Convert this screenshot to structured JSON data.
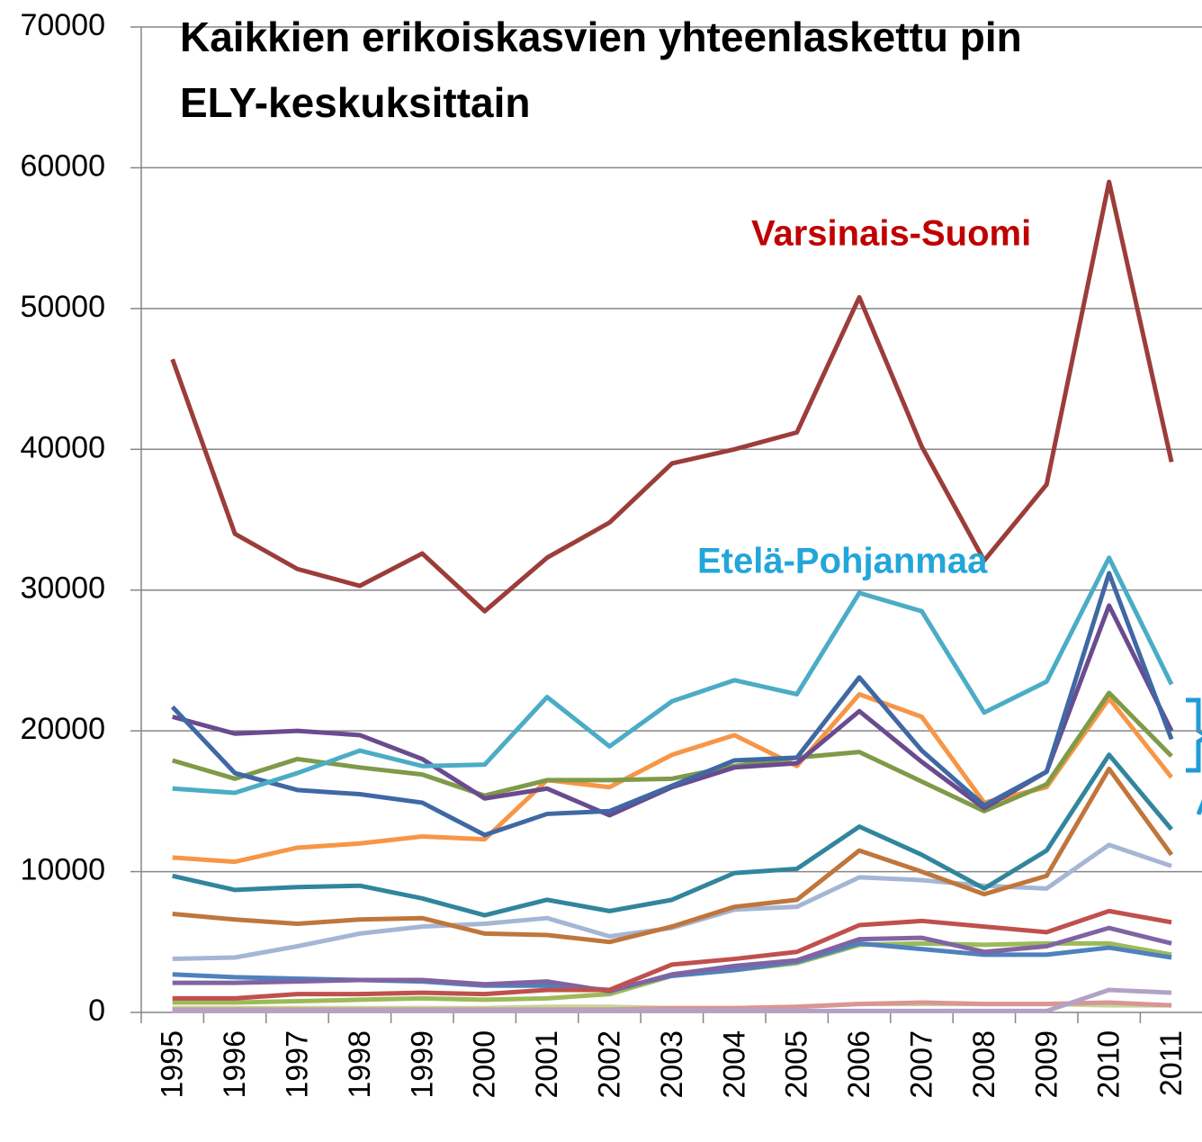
{
  "chart_data": {
    "type": "line",
    "title": [
      "Kaikkien erikoiskasvien yhteenlaskettu pin",
      "ELY-keskuksittain"
    ],
    "annotations": [
      {
        "text": "Varsinais-Suomi",
        "color": "#c00000"
      },
      {
        "text": "Etelä-Pohjanmaa",
        "color": "#23a6d9"
      }
    ],
    "categories": [
      "1995",
      "1996",
      "1997",
      "1998",
      "1999",
      "2000",
      "2001",
      "2002",
      "2003",
      "2004",
      "2005",
      "2006",
      "2007",
      "2008",
      "2009",
      "2010",
      "2011"
    ],
    "ylim": [
      0,
      70000
    ],
    "yticks": [
      0,
      10000,
      20000,
      30000,
      40000,
      50000,
      60000,
      70000
    ],
    "grid": true,
    "series": [
      {
        "color": "#9c3d3a",
        "values": [
          46400,
          34000,
          31500,
          30300,
          32600,
          28500,
          32300,
          34800,
          39000,
          40000,
          41200,
          50800,
          40200,
          32100,
          37500,
          59000,
          39100
        ]
      },
      {
        "color": "#4bacc6",
        "values": [
          15900,
          15600,
          17000,
          18600,
          17500,
          17600,
          22400,
          18900,
          22100,
          23600,
          22600,
          29800,
          28500,
          21300,
          23500,
          32300,
          23300
        ]
      },
      {
        "color": "#3f68a4",
        "values": [
          21700,
          17000,
          15800,
          15500,
          14900,
          12600,
          14100,
          14300,
          16100,
          17900,
          18100,
          23800,
          18600,
          14700,
          17100,
          31200,
          19400
        ]
      },
      {
        "color": "#6a4b8f",
        "values": [
          21000,
          19800,
          20000,
          19700,
          18000,
          15200,
          15900,
          14000,
          16000,
          17400,
          17700,
          21400,
          17800,
          14500,
          17100,
          28900,
          20000
        ]
      },
      {
        "color": "#7f9a48",
        "values": [
          17900,
          16600,
          18000,
          17400,
          16900,
          15400,
          16500,
          16500,
          16600,
          17500,
          18100,
          18500,
          16400,
          14300,
          16200,
          22700,
          18200
        ]
      },
      {
        "color": "#f79646",
        "values": [
          11000,
          10700,
          11700,
          12000,
          12500,
          12300,
          16500,
          16000,
          18300,
          19700,
          17500,
          22600,
          21000,
          14900,
          16000,
          22300,
          16700
        ]
      },
      {
        "color": "#31859c",
        "values": [
          9700,
          8700,
          8900,
          9000,
          8100,
          6900,
          8000,
          7200,
          8000,
          9900,
          10200,
          13200,
          11200,
          8800,
          11500,
          18300,
          13000
        ]
      },
      {
        "color": "#c0763b",
        "values": [
          7000,
          6600,
          6300,
          6600,
          6700,
          5600,
          5500,
          5000,
          6100,
          7500,
          8000,
          11500,
          10000,
          8400,
          9700,
          17300,
          11200
        ]
      },
      {
        "color": "#a5b6d5",
        "values": [
          3800,
          3900,
          4700,
          5600,
          6100,
          6300,
          6700,
          5400,
          6000,
          7300,
          7500,
          9600,
          9400,
          9000,
          8800,
          11900,
          10400
        ]
      },
      {
        "color": "#c0504d",
        "values": [
          1000,
          1000,
          1300,
          1300,
          1400,
          1300,
          1600,
          1600,
          3400,
          3800,
          4300,
          6200,
          6500,
          6100,
          5700,
          7200,
          6400
        ]
      },
      {
        "color": "#8064a2",
        "values": [
          2100,
          2100,
          2200,
          2300,
          2300,
          2000,
          2200,
          1500,
          2700,
          3300,
          3700,
          5200,
          5300,
          4300,
          4700,
          6000,
          4900
        ]
      },
      {
        "color": "#4f81bd",
        "values": [
          2700,
          2500,
          2400,
          2300,
          2200,
          1900,
          1900,
          1600,
          2600,
          3000,
          3600,
          4900,
          4500,
          4100,
          4100,
          4600,
          3900
        ]
      },
      {
        "color": "#9bbb59",
        "values": [
          700,
          700,
          800,
          900,
          1000,
          900,
          1000,
          1300,
          2600,
          3000,
          3500,
          4800,
          4900,
          4800,
          4900,
          4900,
          4100
        ]
      },
      {
        "color": "#b3a2c7",
        "values": [
          100,
          100,
          100,
          100,
          100,
          100,
          100,
          100,
          100,
          100,
          100,
          100,
          100,
          100,
          100,
          1600,
          1400
        ]
      },
      {
        "color": "#d99694",
        "values": [
          200,
          200,
          200,
          200,
          200,
          200,
          200,
          200,
          300,
          300,
          400,
          600,
          700,
          600,
          600,
          700,
          500
        ]
      },
      {
        "color": "#c3d69b",
        "values": [
          300,
          300,
          300,
          300,
          300,
          300,
          400,
          400,
          300,
          300,
          400,
          600,
          600,
          600,
          600,
          500,
          500
        ]
      }
    ]
  }
}
